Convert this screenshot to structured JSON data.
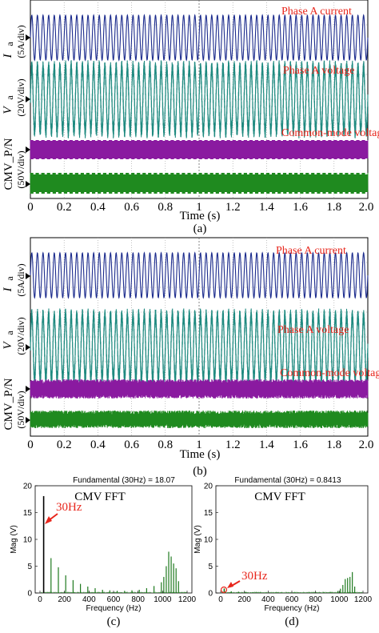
{
  "colors": {
    "current": "#1a2a8c",
    "voltage": "#1f8a80",
    "cmv_p": "#8a1aa0",
    "cmv_n": "#1f8a1f",
    "fft": "#1f7a1f",
    "annotation": "#e8261c"
  },
  "chart_data": [
    {
      "type": "line",
      "panel": "(a)",
      "xlabel": "Time (s)",
      "xlim": [
        0,
        2.0
      ],
      "x_ticks": [
        "0",
        "0.2",
        "0.4",
        "0.6",
        "0.8",
        "1",
        "1.2",
        "1.4",
        "1.6",
        "1.8",
        "2.0"
      ],
      "fundamental_hz": 30,
      "y_labels": {
        "current": "I",
        "current_sub": "a",
        "current_scale": "(5A/div)",
        "voltage": "V",
        "voltage_sub": "a",
        "voltage_scale": "(20V/div)",
        "cmv": "CMV_P/N",
        "cmv_scale": "(50V/div)"
      },
      "series": [
        {
          "name": "Phase A current",
          "kind": "sine",
          "amplitude_div": 0.8
        },
        {
          "name": "Phase A voltage",
          "kind": "sine_pwm",
          "amplitude_div": 1.3
        },
        {
          "name": "Common-mode voltage",
          "kind": "cmv_square",
          "modulation": "strong"
        }
      ]
    },
    {
      "type": "line",
      "panel": "(b)",
      "xlabel": "Time (s)",
      "xlim": [
        0,
        2.0
      ],
      "x_ticks": [
        "0",
        "0.2",
        "0.4",
        "0.6",
        "0.8",
        "1",
        "1.2",
        "1.4",
        "1.6",
        "1.8",
        "2.0"
      ],
      "fundamental_hz": 30,
      "y_labels": {
        "current": "I",
        "current_sub": "a",
        "current_scale": "(5A/div)",
        "voltage": "V",
        "voltage_sub": "a",
        "voltage_scale": "(20V/div)",
        "cmv": "CMV_P/N",
        "cmv_scale": "(50V/div)"
      },
      "series": [
        {
          "name": "Phase A current",
          "kind": "sine",
          "amplitude_div": 0.8
        },
        {
          "name": "Phase A voltage",
          "kind": "sine_pwm",
          "amplitude_div": 1.3
        },
        {
          "name": "Common-mode voltage",
          "kind": "cmv_square",
          "modulation": "weak"
        }
      ]
    },
    {
      "type": "bar",
      "panel": "(c)",
      "title": "Fundamental (30Hz) = 18.07",
      "inner_title": "CMV FFT",
      "xlabel": "Frequency (Hz)",
      "ylabel": "Mag (V)",
      "xlim": [
        0,
        1200
      ],
      "ylim": [
        0,
        20
      ],
      "x_ticks": [
        "0",
        "200",
        "400",
        "600",
        "800",
        "1000",
        "1200"
      ],
      "y_ticks": [
        "0",
        "5",
        "10",
        "15",
        "20"
      ],
      "annotation": "30Hz",
      "x": [
        30,
        90,
        150,
        210,
        270,
        330,
        390,
        450,
        510,
        570,
        630,
        690,
        750,
        810,
        870,
        930,
        990,
        1010,
        1030,
        1050,
        1070,
        1090,
        1110,
        1130
      ],
      "values": [
        18.07,
        6.5,
        4.8,
        3.3,
        2.4,
        1.7,
        1.2,
        0.9,
        0.6,
        0.5,
        0.4,
        0.4,
        0.5,
        0.6,
        0.9,
        1.3,
        2.0,
        3.0,
        5.0,
        7.7,
        6.8,
        5.5,
        4.6,
        2.2
      ]
    },
    {
      "type": "bar",
      "panel": "(d)",
      "title": "Fundamental (30Hz) = 0.8413",
      "inner_title": "CMV FFT",
      "xlabel": "Frequency (Hz)",
      "ylabel": "Mag (V)",
      "xlim": [
        0,
        1200
      ],
      "ylim": [
        0,
        20
      ],
      "x_ticks": [
        "0",
        "200",
        "400",
        "600",
        "800",
        "1000",
        "1200"
      ],
      "y_ticks": [
        "0",
        "5",
        "10",
        "15",
        "20"
      ],
      "annotation": "30Hz",
      "x": [
        30,
        90,
        150,
        210,
        270,
        330,
        390,
        450,
        510,
        570,
        630,
        690,
        750,
        810,
        870,
        930,
        990,
        1010,
        1030,
        1050,
        1070,
        1090,
        1110,
        1130
      ],
      "values": [
        0.84,
        0.3,
        0.25,
        0.2,
        0.15,
        0.12,
        0.1,
        0.1,
        0.1,
        0.1,
        0.1,
        0.1,
        0.1,
        0.12,
        0.15,
        0.2,
        0.4,
        0.8,
        1.5,
        2.6,
        2.8,
        3.0,
        3.9,
        1.2
      ]
    }
  ]
}
